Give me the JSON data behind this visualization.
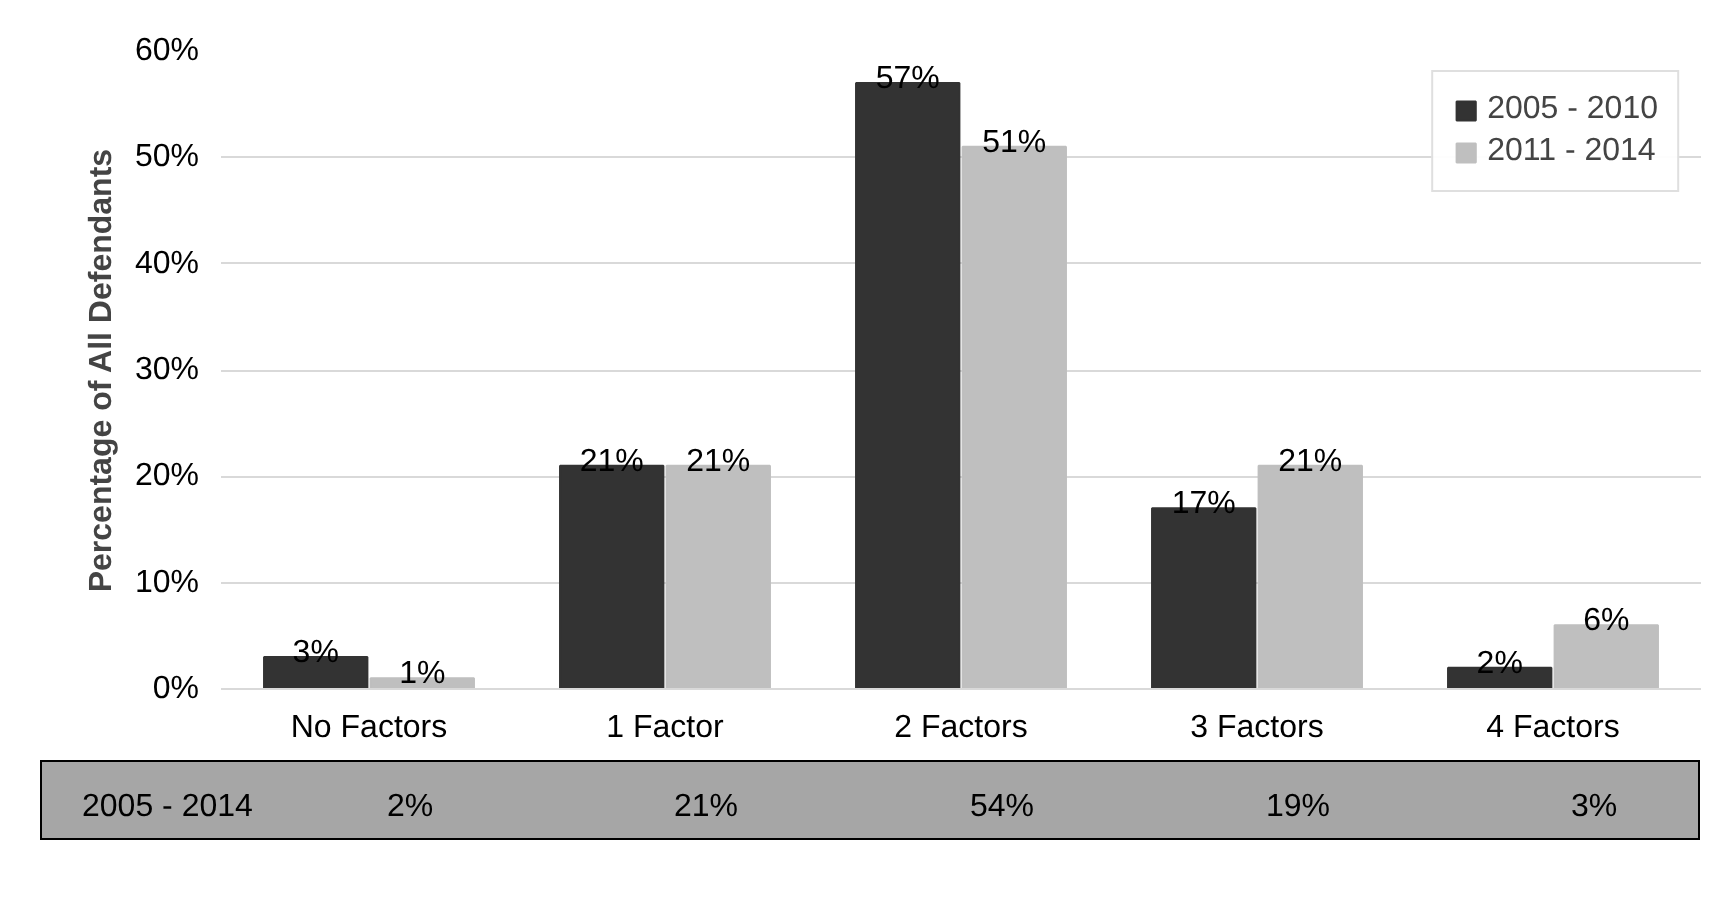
{
  "chart_data": {
    "type": "bar",
    "ylabel": "Percentage of All Defendants",
    "categories": [
      "No Factors",
      "1 Factor",
      "2 Factors",
      "3 Factors",
      "4 Factors"
    ],
    "series": [
      {
        "name": "2005 - 2010",
        "color": "#333333",
        "values": [
          3,
          21,
          57,
          17,
          2
        ],
        "value_labels": [
          "3%",
          "21%",
          "57%",
          "17%",
          "2%"
        ]
      },
      {
        "name": "2011 - 2014",
        "color": "#bfbfbf",
        "values": [
          1,
          21,
          51,
          21,
          6
        ],
        "value_labels": [
          "1%",
          "21%",
          "51%",
          "21%",
          "6%"
        ]
      }
    ],
    "ylim": [
      0,
      60
    ],
    "yticks": [
      {
        "value": 0,
        "label": "0%"
      },
      {
        "value": 10,
        "label": "10%"
      },
      {
        "value": 20,
        "label": "20%"
      },
      {
        "value": 30,
        "label": "30%"
      },
      {
        "value": 40,
        "label": "40%"
      },
      {
        "value": 50,
        "label": "50%"
      },
      {
        "value": 60,
        "label": "60%"
      }
    ],
    "grid": "y",
    "legend": "top right",
    "annotations": [
      "2005 - 2014",
      "2%",
      "21%",
      "54%",
      "19%",
      "3%"
    ]
  }
}
